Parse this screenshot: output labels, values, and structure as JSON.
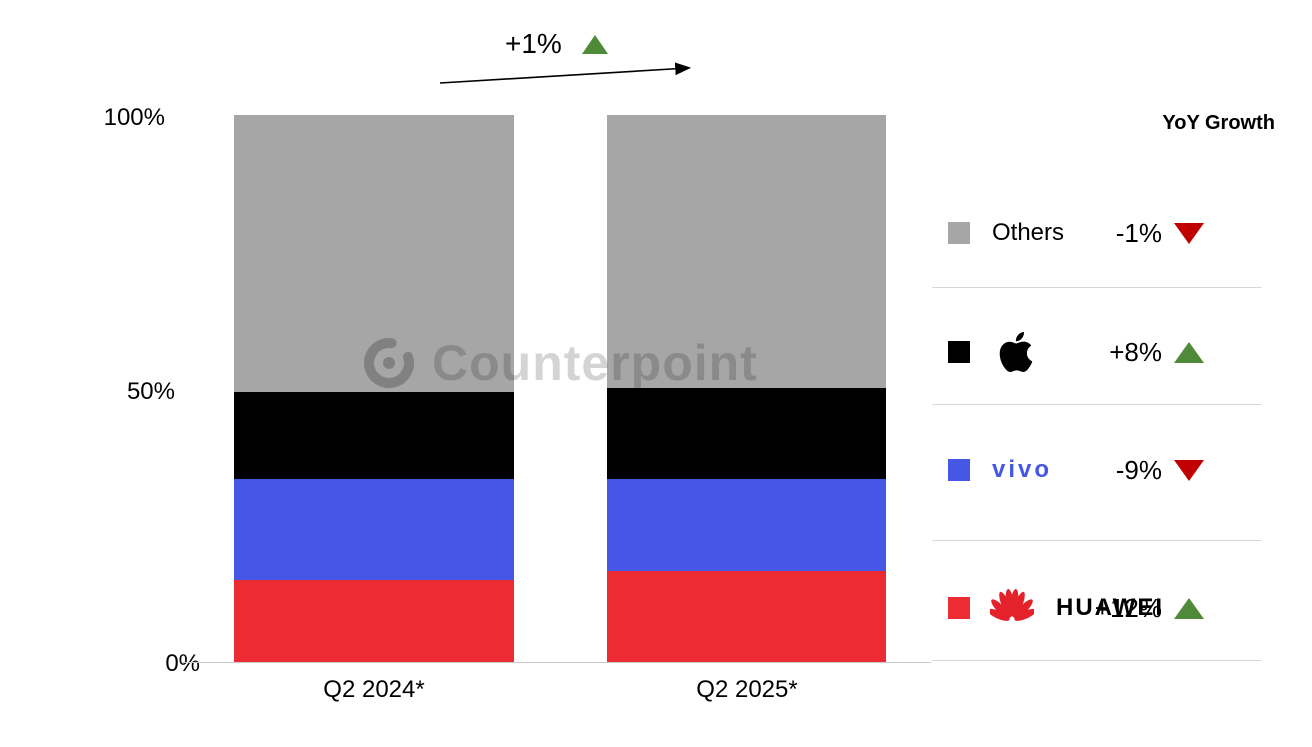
{
  "chart_data": {
    "type": "bar",
    "stacked": true,
    "title": "",
    "units": "% market share",
    "categories": [
      "Q2 2024*",
      "Q2 2025*"
    ],
    "series": [
      {
        "name": "Huawei",
        "color": "#ED2B33",
        "values": [
          15.0,
          16.6
        ]
      },
      {
        "name": "vivo",
        "color": "#4657E5",
        "values": [
          18.5,
          16.9
        ]
      },
      {
        "name": "Apple",
        "color": "#000000",
        "values": [
          15.9,
          16.6
        ]
      },
      {
        "name": "Others",
        "color": "#A6A6A6",
        "values": [
          50.6,
          49.9
        ]
      }
    ],
    "ylim": [
      0,
      100
    ],
    "y_ticks": [
      "100%",
      "50%",
      "0%"
    ],
    "grid": false,
    "legend_position": "right",
    "total_annotation": {
      "text": "+1%",
      "direction": "up"
    },
    "watermark": "Counterpoint",
    "legend": {
      "header": "YoY Growth",
      "rows": [
        {
          "label": "Others",
          "swatch": "#A6A6A6",
          "value": "-1%",
          "dir": "down"
        },
        {
          "label": "Apple",
          "swatch": "#000000",
          "value": "+8%",
          "dir": "up"
        },
        {
          "label": "vivo",
          "swatch": "#4657E5",
          "value": "-9%",
          "dir": "down"
        },
        {
          "label": "HUAWEI",
          "swatch": "#ED2B33",
          "value": "+12%",
          "dir": "up"
        }
      ]
    }
  },
  "status_colors": {
    "growth_up": "#4E8A38",
    "growth_down": "#C00000"
  }
}
